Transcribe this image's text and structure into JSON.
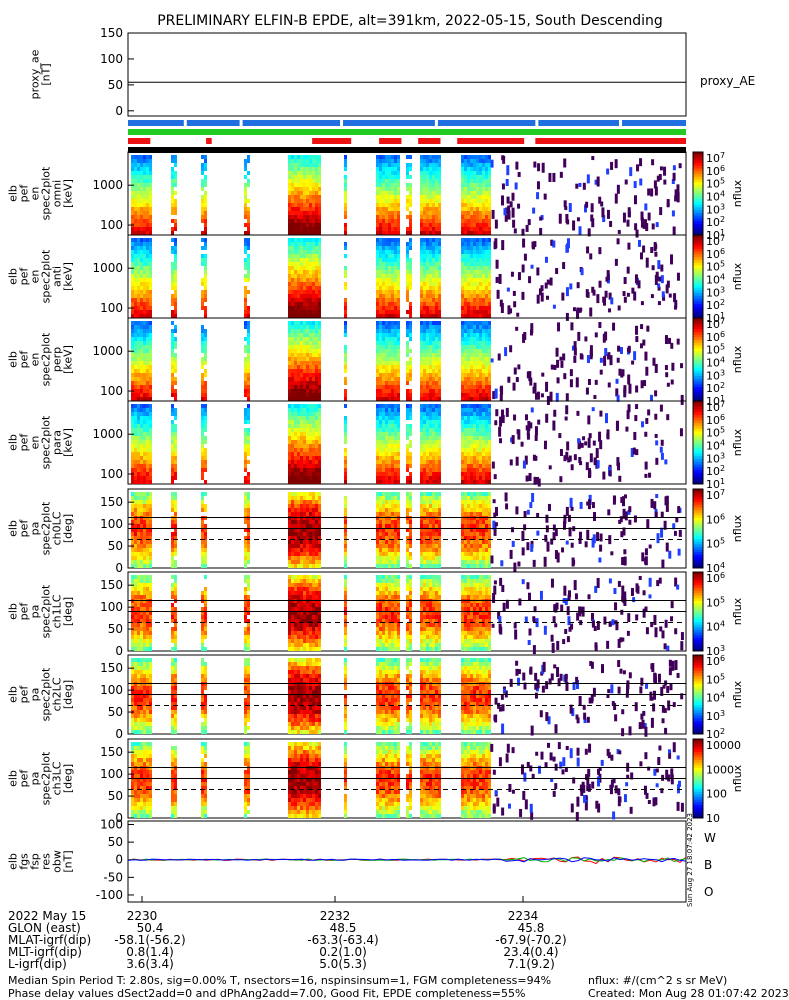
{
  "title": "PRELIMINARY ELFIN-B EPDE, alt=391km, 2022-05-15, South Descending",
  "colors": {
    "status_blue": "#1f6fe0",
    "status_green": "#22cc22",
    "status_red": "#ee1111",
    "status_black": "#000000",
    "positive_line": "#ff0000",
    "green_line": "#00b000",
    "blue_line": "#0000ff"
  },
  "status_bars": {
    "red_segments_fraction": [
      [
        0.0,
        0.04
      ],
      [
        0.14,
        0.15
      ],
      [
        0.33,
        0.4
      ],
      [
        0.45,
        0.49
      ],
      [
        0.52,
        0.56
      ],
      [
        0.59,
        0.71
      ],
      [
        0.73,
        1.0
      ]
    ]
  },
  "chart_data": [
    {
      "type": "line",
      "panel": "proxy_ae",
      "ylabel": "proxy_ae\n[nT]",
      "legend": "proxy_AE",
      "yticks": [
        "150",
        "100",
        "50",
        "0"
      ],
      "ylim": [
        -10,
        150
      ],
      "series": [
        {
          "name": "proxy_AE",
          "values": [
            55,
            55
          ]
        }
      ]
    },
    {
      "type": "heatmap",
      "panel": "omni",
      "ylabel": "elb\npef\nen\nspec2plot\nomni\n[keV]",
      "yticks": [
        "1000",
        "100"
      ],
      "yscale": "log",
      "colorbar_ticks": [
        "10^7",
        "10^6",
        "10^5",
        "10^4",
        "10^3",
        "10^2",
        "10^1"
      ],
      "colorbar_label": "nflux"
    },
    {
      "type": "heatmap",
      "panel": "anti",
      "ylabel": "elb\npef\nen\nspec2plot\nanti\n[keV]",
      "yticks": [
        "1000",
        "100"
      ],
      "yscale": "log",
      "colorbar_ticks": [
        "10^7",
        "10^6",
        "10^5",
        "10^4",
        "10^3",
        "10^2",
        "10^1"
      ],
      "colorbar_label": "nflux"
    },
    {
      "type": "heatmap",
      "panel": "perp",
      "ylabel": "elb\npef\nen\nspec2plot\nperp\n[keV]",
      "yticks": [
        "1000",
        "100"
      ],
      "yscale": "log",
      "colorbar_ticks": [
        "10^7",
        "10^6",
        "10^5",
        "10^4",
        "10^3",
        "10^2",
        "10^1"
      ],
      "colorbar_label": "nflux"
    },
    {
      "type": "heatmap",
      "panel": "para",
      "ylabel": "elb\npef\nen\nspec2plot\npara\n[keV]",
      "yticks": [
        "1000",
        "100"
      ],
      "yscale": "log",
      "colorbar_ticks": [
        "10^7",
        "10^6",
        "10^5",
        "10^4",
        "10^3",
        "10^2",
        "10^1"
      ],
      "colorbar_label": "nflux"
    },
    {
      "type": "heatmap",
      "panel": "ch0LC",
      "ylabel": "elb\npef\npa\nspec2plot\nch0LC\n[deg]",
      "yticks": [
        "150",
        "100",
        "50",
        "0"
      ],
      "ylim": [
        0,
        180
      ],
      "lc_lines": [
        65,
        90,
        115
      ],
      "colorbar_ticks": [
        "10^7",
        "10^6",
        "10^5",
        "10^4"
      ],
      "colorbar_label": "nflux"
    },
    {
      "type": "heatmap",
      "panel": "ch1LC",
      "ylabel": "elb\npef\npa\nspec2plot\nch1LC\n[deg]",
      "yticks": [
        "150",
        "100",
        "50",
        "0"
      ],
      "ylim": [
        0,
        180
      ],
      "lc_lines": [
        65,
        90,
        115
      ],
      "colorbar_ticks": [
        "10^6",
        "10^5",
        "10^4",
        "10^3"
      ],
      "colorbar_label": "nflux"
    },
    {
      "type": "heatmap",
      "panel": "ch2LC",
      "ylabel": "elb\npef\npa\nspec2plot\nch2LC\n[deg]",
      "yticks": [
        "150",
        "100",
        "50",
        "0"
      ],
      "ylim": [
        0,
        180
      ],
      "lc_lines": [
        65,
        90,
        115
      ],
      "colorbar_ticks": [
        "10^6",
        "10^5",
        "10^4",
        "10^3",
        "10^2"
      ],
      "colorbar_label": "nflux"
    },
    {
      "type": "heatmap",
      "panel": "ch3LC",
      "ylabel": "elb\npef\npa\nspec2plot\nch3LC\n[deg]",
      "yticks": [
        "150",
        "100",
        "50",
        "0"
      ],
      "ylim": [
        0,
        180
      ],
      "lc_lines": [
        65,
        90,
        115
      ],
      "colorbar_ticks": [
        "10000",
        "1000",
        "100",
        "10"
      ],
      "colorbar_label": "nflux"
    },
    {
      "type": "line",
      "panel": "fgs",
      "ylabel": "elb\nfgs\nfsp\nres\nobw\n[nT]",
      "yticks": [
        "100",
        "50",
        "0",
        "-50",
        "-100"
      ],
      "ylim": [
        -120,
        110
      ],
      "legend": [
        "W",
        "B",
        "O"
      ]
    }
  ],
  "x_axis": {
    "ticks": [
      "2230",
      "2232",
      "2234"
    ],
    "rows": [
      {
        "label": "2022 May 15",
        "values": [
          "",
          "",
          ""
        ]
      },
      {
        "label": "GLON (east)",
        "values": [
          "50.4",
          "48.5",
          "45.8"
        ]
      },
      {
        "label": "MLAT-igrf(dip)",
        "values": [
          "-58.1(-56.2)",
          "-63.3(-63.4)",
          "-67.9(-70.2)"
        ]
      },
      {
        "label": "MLT-igrf(dip)",
        "values": [
          "0.8(1.4)",
          "0.2(1.0)",
          "23.4(0.4)"
        ]
      },
      {
        "label": "L-igrf(dip)",
        "values": [
          "3.6(3.4)",
          "5.0(5.3)",
          "7.1(9.2)"
        ]
      }
    ]
  },
  "side_note": "Sun Aug 27 18:07:42 2023",
  "footer": {
    "line1": "Median Spin Period T: 2.80s, sig=0.00% T, nsectors=16, nspinsinsum=1, FGM completeness=94%",
    "line2": "Phase delay values dSect2add=0 and dPhAng2add=7.00, Good Fit, EPDE completeness=55%",
    "units": "nflux: #/(cm^2 s sr MeV)",
    "created": "Created: Mon Aug 28 01:07:42 2023"
  }
}
